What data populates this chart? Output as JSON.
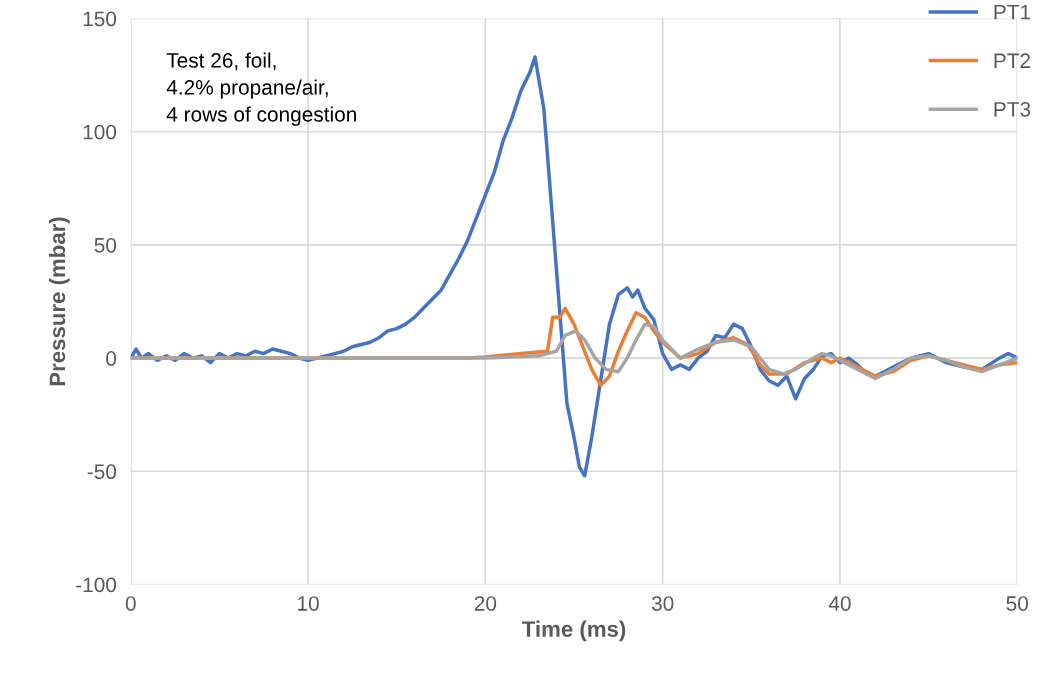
{
  "chart_data": {
    "type": "line",
    "xlabel": "Time (ms)",
    "ylabel": "Pressure (mbar)",
    "xlim": [
      0,
      50
    ],
    "xticks": [
      0,
      10,
      20,
      30,
      40,
      50
    ],
    "ylim": [
      -100,
      150
    ],
    "yticks": [
      -100,
      -50,
      0,
      50,
      100,
      150
    ],
    "grid": true,
    "legend": "top right",
    "marker": "none",
    "line_style": "solid",
    "annotations": [
      "Test 26, foil,\n4.2% propane/air,\n4 rows of congestion"
    ],
    "series": [
      {
        "name": "PT1",
        "color": "#4472c4",
        "x": [
          0,
          0.3,
          0.6,
          1,
          1.5,
          2,
          2.5,
          3,
          3.5,
          4,
          4.5,
          5,
          5.5,
          6,
          6.5,
          7,
          7.5,
          8,
          8.5,
          9,
          9.5,
          10,
          10.5,
          11,
          11.5,
          12,
          12.5,
          13,
          13.5,
          14,
          14.5,
          15,
          15.5,
          16,
          16.5,
          17,
          17.5,
          18,
          18.5,
          19,
          19.5,
          20,
          20.5,
          21,
          21.5,
          22,
          22.5,
          22.8,
          23.3,
          23.6,
          24,
          24.3,
          24.6,
          25,
          25.3,
          25.6,
          26,
          26.5,
          27,
          27.5,
          28,
          28.3,
          28.6,
          29,
          29.5,
          30,
          30.5,
          31,
          31.5,
          32,
          32.5,
          33,
          33.5,
          34,
          34.5,
          35,
          35.5,
          36,
          36.5,
          37,
          37.5,
          38,
          38.5,
          39,
          39.5,
          40,
          40.5,
          41,
          41.5,
          42,
          42.5,
          43,
          44,
          45,
          45.5,
          46,
          47,
          48,
          49,
          49.5,
          50
        ],
        "values": [
          0,
          4,
          0,
          2,
          -1,
          1,
          -1,
          2,
          0,
          1,
          -2,
          2,
          0,
          2,
          1,
          3,
          2,
          4,
          3,
          2,
          0,
          -1,
          0,
          1,
          2,
          3,
          5,
          6,
          7,
          9,
          12,
          13,
          15,
          18,
          22,
          26,
          30,
          37,
          44,
          52,
          62,
          72,
          82,
          96,
          106,
          118,
          126,
          133,
          110,
          80,
          40,
          10,
          -20,
          -35,
          -48,
          -52,
          -35,
          -10,
          15,
          28,
          31,
          27,
          30,
          22,
          17,
          2,
          -5,
          -3,
          -5,
          0,
          3,
          10,
          9,
          15,
          13,
          5,
          -5,
          -10,
          -12,
          -8,
          -18,
          -9,
          -5,
          1,
          2,
          -2,
          0,
          -3,
          -7,
          -8,
          -6,
          -4,
          0,
          2,
          0,
          -2,
          -4,
          -5,
          0,
          2,
          0
        ]
      },
      {
        "name": "PT2",
        "color": "#ed7d31",
        "x": [
          0,
          10,
          19,
          20,
          22,
          23.5,
          23.8,
          24.2,
          24.5,
          25,
          25.5,
          26,
          26.5,
          27,
          27.5,
          28,
          28.5,
          29,
          29.5,
          30,
          31,
          32,
          33,
          34,
          34.8,
          35.5,
          36,
          37,
          38,
          39,
          39.5,
          40,
          41,
          42,
          43,
          44,
          45,
          46,
          47,
          48,
          49,
          50
        ],
        "values": [
          0,
          0,
          0,
          0.5,
          2,
          3,
          18,
          18,
          22,
          15,
          5,
          -5,
          -12,
          -8,
          3,
          12,
          20,
          18,
          12,
          7,
          0,
          2,
          7,
          9,
          6,
          -3,
          -7,
          -7,
          -2,
          0,
          -2,
          0,
          -4,
          -8,
          -6,
          -1,
          1,
          -1,
          -3,
          -5,
          -3,
          -2
        ]
      },
      {
        "name": "PT3",
        "color": "#a5a5a5",
        "x": [
          0,
          10,
          20,
          23,
          24,
          24.5,
          25.1,
          25.6,
          26.2,
          26.8,
          27.5,
          28,
          28.5,
          29,
          29.5,
          30,
          31,
          32,
          33,
          34,
          35,
          36,
          36.8,
          37.5,
          38.5,
          39,
          39.5,
          40.5,
          42,
          43,
          44,
          45,
          46,
          47,
          48,
          49,
          50
        ],
        "values": [
          0,
          0,
          0,
          1,
          3,
          10,
          12,
          8,
          0,
          -5,
          -6,
          0,
          8,
          15,
          14,
          8,
          0,
          4,
          7,
          8,
          5,
          -5,
          -7,
          -5,
          0,
          2,
          1,
          -3,
          -9,
          -5,
          0,
          1,
          -1,
          -4,
          -6,
          -3,
          0
        ]
      }
    ]
  }
}
